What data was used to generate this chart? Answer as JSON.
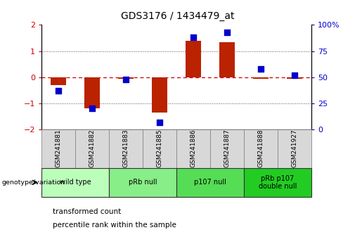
{
  "title": "GDS3176 / 1434479_at",
  "samples": [
    "GSM241881",
    "GSM241882",
    "GSM241883",
    "GSM241885",
    "GSM241886",
    "GSM241887",
    "GSM241888",
    "GSM241927"
  ],
  "bar_values": [
    -0.3,
    -1.2,
    -0.05,
    -1.35,
    1.4,
    1.35,
    -0.05,
    -0.05
  ],
  "dot_values": [
    37,
    20,
    48,
    7,
    88,
    93,
    58,
    52
  ],
  "groups": [
    {
      "label": "wild type",
      "start": 0,
      "end": 2,
      "color": "#bbffbb"
    },
    {
      "label": "pRb null",
      "start": 2,
      "end": 4,
      "color": "#88ee88"
    },
    {
      "label": "p107 null",
      "start": 4,
      "end": 6,
      "color": "#55dd55"
    },
    {
      "label": "pRb p107\ndouble null",
      "start": 6,
      "end": 8,
      "color": "#22cc22"
    }
  ],
  "ylim": [
    -2,
    2
  ],
  "y2lim": [
    0,
    100
  ],
  "yticks_left": [
    -2,
    -1,
    0,
    1,
    2
  ],
  "yticks_right": [
    0,
    25,
    50,
    75,
    100
  ],
  "bar_color": "#bb2200",
  "dot_color": "#0000cc",
  "zero_line_color": "#cc0000",
  "dotted_line_color": "#555555",
  "bg_color": "#ffffff",
  "plot_bg": "#ffffff",
  "legend_bar_label": "transformed count",
  "legend_dot_label": "percentile rank within the sample",
  "genotype_label": "genotype/variation",
  "bar_width": 0.45,
  "dot_size": 28
}
